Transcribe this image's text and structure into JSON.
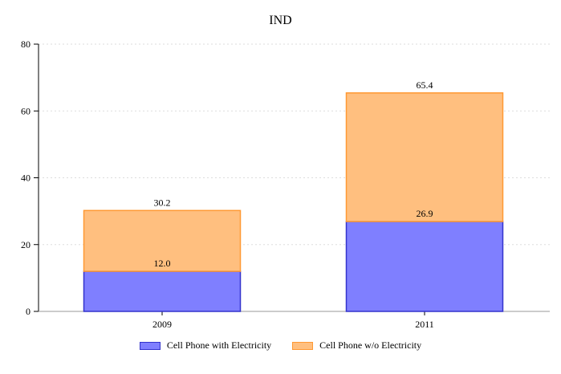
{
  "chart_data": {
    "type": "bar",
    "stacked": true,
    "title": "IND",
    "categories": [
      "2009",
      "2011"
    ],
    "series": [
      {
        "name": "Cell Phone with Electricity",
        "values": [
          12.0,
          26.9
        ],
        "fill": "#7f7fff",
        "stroke": "#3333cc"
      },
      {
        "name": "Cell Phone w/o Electricity",
        "values": [
          18.2,
          38.5
        ],
        "fill": "#ffbf7f",
        "stroke": "#ff9933"
      }
    ],
    "data_labels": {
      "2009": [
        "12.0",
        "30.2"
      ],
      "2011": [
        "26.9",
        "65.4"
      ]
    },
    "ylim": [
      0,
      80
    ],
    "yticks": [
      0,
      20,
      40,
      60,
      80
    ],
    "grid": true,
    "legend": "bottom"
  }
}
